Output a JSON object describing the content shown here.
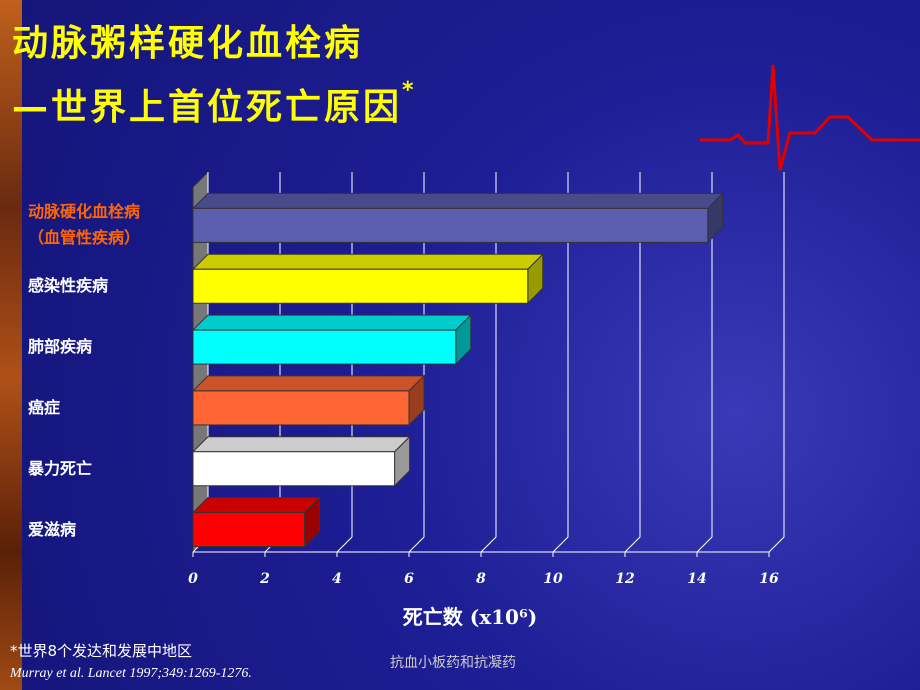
{
  "chart_data": {
    "type": "bar3d",
    "title": "动脉粥样硬化血栓病",
    "subtitle": "—世界上首位死亡原因",
    "title_mark": "*",
    "categories": [
      "动脉硬化血栓病\n（血管性疾病）",
      "感染性疾病",
      "肺部疾病",
      "癌症",
      "暴力死亡",
      "爱滋病"
    ],
    "values": [
      14.3,
      9.3,
      7.3,
      6.0,
      5.6,
      3.1
    ],
    "colors": [
      "#5a5eac",
      "#ffff00",
      "#00ffff",
      "#ff6633",
      "#ffffff",
      "#ff0000"
    ],
    "highlight_color": "#ff6600",
    "xlim": [
      0,
      16
    ],
    "xticks": [
      0,
      2,
      4,
      6,
      8,
      10,
      12,
      14,
      16
    ],
    "xlabel": "死亡数 (x10⁶)",
    "grid": true
  },
  "footnote": "*世界8个发达和发展中地区",
  "citation": "Murray et al. Lancet 1997;349:1269-1276.",
  "footer": "抗血小板药和抗凝药"
}
